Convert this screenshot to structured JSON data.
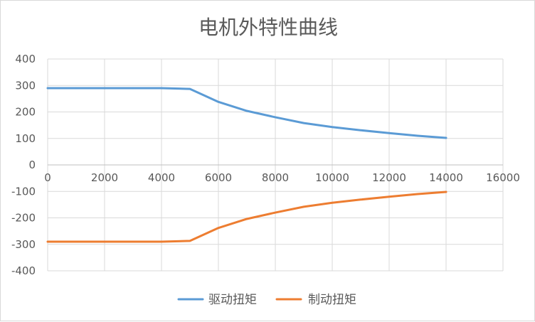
{
  "chart_data": {
    "type": "line",
    "title": "电机外特性曲线",
    "xlabel": "",
    "ylabel": "",
    "xlim": [
      0,
      16000
    ],
    "ylim": [
      -400,
      400
    ],
    "x_ticks": [
      0,
      2000,
      4000,
      6000,
      8000,
      10000,
      12000,
      14000,
      16000
    ],
    "y_ticks": [
      400,
      300,
      200,
      100,
      0,
      -100,
      -200,
      -300,
      -400
    ],
    "grid": true,
    "legend_position": "bottom",
    "series": [
      {
        "name": "驱动扭矩",
        "color": "#5b9bd5",
        "points": [
          {
            "x": 0,
            "y": 290
          },
          {
            "x": 1000,
            "y": 290
          },
          {
            "x": 2000,
            "y": 290
          },
          {
            "x": 3000,
            "y": 290
          },
          {
            "x": 4000,
            "y": 290
          },
          {
            "x": 5000,
            "y": 287
          },
          {
            "x": 6000,
            "y": 238
          },
          {
            "x": 7000,
            "y": 204
          },
          {
            "x": 8000,
            "y": 180
          },
          {
            "x": 9000,
            "y": 158
          },
          {
            "x": 10000,
            "y": 143
          },
          {
            "x": 11000,
            "y": 131
          },
          {
            "x": 12000,
            "y": 120
          },
          {
            "x": 13000,
            "y": 110
          },
          {
            "x": 14000,
            "y": 102
          }
        ]
      },
      {
        "name": "制动扭矩",
        "color": "#ed7d31",
        "points": [
          {
            "x": 0,
            "y": -290
          },
          {
            "x": 1000,
            "y": -290
          },
          {
            "x": 2000,
            "y": -290
          },
          {
            "x": 3000,
            "y": -290
          },
          {
            "x": 4000,
            "y": -290
          },
          {
            "x": 5000,
            "y": -287
          },
          {
            "x": 6000,
            "y": -238
          },
          {
            "x": 7000,
            "y": -204
          },
          {
            "x": 8000,
            "y": -180
          },
          {
            "x": 9000,
            "y": -158
          },
          {
            "x": 10000,
            "y": -143
          },
          {
            "x": 11000,
            "y": -131
          },
          {
            "x": 12000,
            "y": -120
          },
          {
            "x": 13000,
            "y": -110
          },
          {
            "x": 14000,
            "y": -102
          }
        ]
      }
    ]
  }
}
